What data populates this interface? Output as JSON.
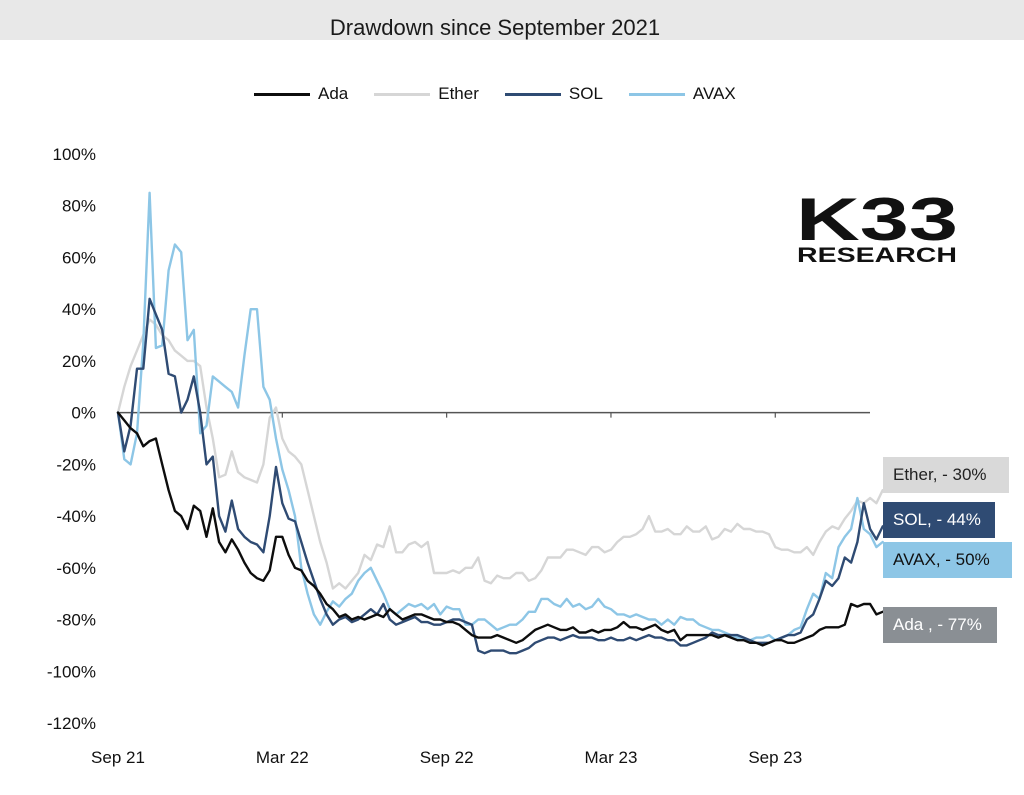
{
  "chart_data": {
    "type": "line",
    "title": "Drawdown since September 2021",
    "xlabel": "",
    "ylabel": "",
    "ylim": [
      -120,
      100
    ],
    "yticks": [
      100,
      80,
      60,
      40,
      20,
      0,
      -20,
      -40,
      -60,
      -80,
      -100,
      -120
    ],
    "ytick_labels": [
      "100%",
      "80%",
      "60%",
      "40%",
      "20%",
      "0%",
      "-20%",
      "-40%",
      "-60%",
      "-80%",
      "-100%",
      "-120%"
    ],
    "xtick_labels": [
      "Sep 21",
      "Mar 22",
      "Sep 22",
      "Mar 23",
      "Sep 23"
    ],
    "xtick_weeks": [
      0,
      26,
      52,
      78,
      104
    ],
    "x_unit": "weeks since Sep 2021",
    "grid": false,
    "legend_position": "top",
    "series": [
      {
        "name": "Ada",
        "color": "#0d0d0d",
        "values": [
          0,
          -3,
          -6,
          -8,
          -13,
          -11,
          -10,
          -20,
          -30,
          -38,
          -40,
          -45,
          -36,
          -38,
          -48,
          -37,
          -50,
          -54,
          -49,
          -53,
          -58,
          -62,
          -64,
          -65,
          -61,
          -48,
          -48,
          -55,
          -60,
          -61,
          -65,
          -67,
          -70,
          -74,
          -76,
          -79,
          -78,
          -80,
          -79,
          -80,
          -79,
          -78,
          -79,
          -76,
          -78,
          -80,
          -79,
          -78,
          -78,
          -79,
          -80,
          -80,
          -81,
          -81,
          -82,
          -84,
          -86,
          -87,
          -87,
          -87,
          -86,
          -87,
          -88,
          -89,
          -88,
          -86,
          -84,
          -83,
          -82,
          -83,
          -84,
          -84,
          -83,
          -85,
          -85,
          -84,
          -85,
          -84,
          -84,
          -83,
          -81,
          -83,
          -83,
          -84,
          -83,
          -82,
          -84,
          -85,
          -84,
          -88,
          -86,
          -86,
          -86,
          -86,
          -86,
          -87,
          -86,
          -87,
          -88,
          -88,
          -89,
          -89,
          -90,
          -89,
          -88,
          -88,
          -89,
          -89,
          -88,
          -87,
          -86,
          -84,
          -83,
          -83,
          -83,
          -82,
          -74,
          -75,
          -74,
          -74,
          -78,
          -77
        ]
      },
      {
        "name": "Ether",
        "color": "#d6d6d6",
        "values": [
          0,
          10,
          18,
          24,
          30,
          36,
          34,
          30,
          28,
          24,
          22,
          20,
          20,
          18,
          2,
          -10,
          -25,
          -24,
          -15,
          -23,
          -25,
          -26,
          -27,
          -20,
          -2,
          2,
          -10,
          -15,
          -17,
          -20,
          -30,
          -40,
          -50,
          -58,
          -68,
          -66,
          -68,
          -65,
          -62,
          -55,
          -57,
          -51,
          -52,
          -44,
          -54,
          -54,
          -51,
          -50,
          -52,
          -50,
          -62,
          -62,
          -62,
          -61,
          -62,
          -60,
          -60,
          -56,
          -65,
          -66,
          -63,
          -64,
          -64,
          -62,
          -62,
          -65,
          -64,
          -61,
          -56,
          -56,
          -56,
          -53,
          -53,
          -54,
          -55,
          -52,
          -52,
          -54,
          -53,
          -50,
          -48,
          -48,
          -47,
          -45,
          -40,
          -46,
          -46,
          -45,
          -47,
          -47,
          -44,
          -46,
          -46,
          -44,
          -49,
          -48,
          -45,
          -46,
          -43,
          -45,
          -45,
          -46,
          -46,
          -47,
          -52,
          -53,
          -53,
          -54,
          -54,
          -52,
          -55,
          -50,
          -46,
          -44,
          -45,
          -41,
          -38,
          -34,
          -35,
          -33,
          -35,
          -30
        ]
      },
      {
        "name": "SOL",
        "color": "#2f4b73",
        "values": [
          0,
          -15,
          -5,
          17,
          17,
          44,
          38,
          32,
          15,
          14,
          0,
          5,
          14,
          0,
          -20,
          -17,
          -40,
          -46,
          -34,
          -45,
          -48,
          -50,
          -51,
          -54,
          -40,
          -21,
          -35,
          -41,
          -42,
          -50,
          -58,
          -65,
          -72,
          -78,
          -82,
          -80,
          -79,
          -81,
          -80,
          -78,
          -76,
          -78,
          -74,
          -80,
          -82,
          -81,
          -80,
          -79,
          -81,
          -81,
          -82,
          -82,
          -81,
          -80,
          -80,
          -81,
          -82,
          -92,
          -93,
          -92,
          -92,
          -92,
          -93,
          -93,
          -92,
          -91,
          -89,
          -88,
          -87,
          -87,
          -88,
          -87,
          -86,
          -87,
          -87,
          -87,
          -88,
          -88,
          -87,
          -88,
          -88,
          -87,
          -88,
          -87,
          -86,
          -87,
          -87,
          -88,
          -88,
          -90,
          -90,
          -89,
          -88,
          -87,
          -85,
          -86,
          -86,
          -86,
          -86,
          -87,
          -88,
          -89,
          -89,
          -89,
          -88,
          -87,
          -86,
          -86,
          -85,
          -80,
          -78,
          -72,
          -65,
          -67,
          -64,
          -56,
          -58,
          -50,
          -35,
          -45,
          -49,
          -44
        ]
      },
      {
        "name": "AVAX",
        "color": "#8dc6e6",
        "values": [
          0,
          -18,
          -20,
          -8,
          27,
          85,
          25,
          26,
          55,
          65,
          62,
          28,
          32,
          -8,
          -5,
          14,
          12,
          10,
          8,
          2,
          22,
          40,
          40,
          10,
          5,
          -10,
          -22,
          -30,
          -40,
          -60,
          -70,
          -78,
          -82,
          -77,
          -73,
          -75,
          -72,
          -70,
          -65,
          -62,
          -60,
          -65,
          -70,
          -76,
          -78,
          -76,
          -74,
          -75,
          -74,
          -76,
          -74,
          -78,
          -75,
          -76,
          -76,
          -82,
          -82,
          -80,
          -80,
          -82,
          -84,
          -83,
          -82,
          -82,
          -80,
          -77,
          -77,
          -72,
          -72,
          -74,
          -75,
          -72,
          -75,
          -74,
          -76,
          -75,
          -72,
          -75,
          -76,
          -78,
          -78,
          -79,
          -78,
          -79,
          -80,
          -80,
          -82,
          -80,
          -82,
          -79,
          -80,
          -80,
          -82,
          -83,
          -84,
          -84,
          -85,
          -86,
          -87,
          -88,
          -88,
          -87,
          -87,
          -86,
          -88,
          -87,
          -86,
          -84,
          -83,
          -76,
          -70,
          -72,
          -62,
          -64,
          -52,
          -48,
          -45,
          -33,
          -45,
          -47,
          -52,
          -50
        ]
      }
    ],
    "end_labels": [
      {
        "text": "Ether, - 30%",
        "bg": "#d9d9d9",
        "fg": "#222222"
      },
      {
        "text": "SOL, - 44%",
        "bg": "#2f4b73",
        "fg": "#ffffff"
      },
      {
        "text": "AVAX, - 50%",
        "bg": "#8dc6e6",
        "fg": "#111111"
      },
      {
        "text": "Ada , - 77%",
        "bg": "#8a8f94",
        "fg": "#ffffff"
      }
    ]
  },
  "logo": {
    "line1": "K33",
    "line2": "RESEARCH"
  }
}
